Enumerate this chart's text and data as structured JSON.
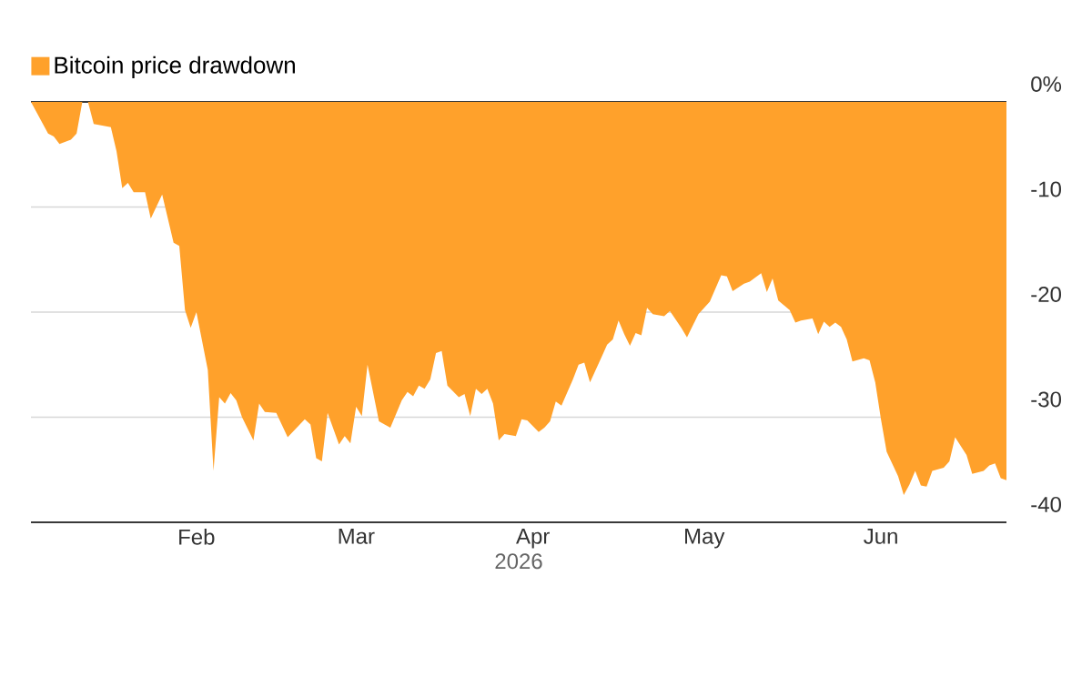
{
  "chart_data": {
    "type": "area",
    "legend": "top left",
    "xlabel": "2026",
    "xlim": [
      "2026-01-03",
      "2026-06-23"
    ],
    "xticks": [
      {
        "value": "2026-02-01",
        "label": "Feb"
      },
      {
        "value": "2026-03-01",
        "label": "Mar"
      },
      {
        "value": "2026-04-01",
        "label": "Apr"
      },
      {
        "value": "2026-05-01",
        "label": "May"
      },
      {
        "value": "2026-06-01",
        "label": "Jun"
      }
    ],
    "ylim": [
      -40,
      0
    ],
    "yticks": [
      {
        "value": 0,
        "label": "0%"
      },
      -10,
      -20,
      -30,
      -40
    ],
    "grid": "y",
    "x": [
      "2026-01-03",
      "2026-01-06",
      "2026-01-07",
      "2026-01-08",
      "2026-01-10",
      "2026-01-11",
      "2026-01-12",
      "2026-01-13",
      "2026-01-14",
      "2026-01-17",
      "2026-01-18",
      "2026-01-19",
      "2026-01-20",
      "2026-01-21",
      "2026-01-23",
      "2026-01-24",
      "2026-01-26",
      "2026-01-28",
      "2026-01-29",
      "2026-01-30",
      "2026-01-31",
      "2026-02-01",
      "2026-02-03",
      "2026-02-04",
      "2026-02-05",
      "2026-02-06",
      "2026-02-07",
      "2026-02-08",
      "2026-02-09",
      "2026-02-11",
      "2026-02-12",
      "2026-02-13",
      "2026-02-15",
      "2026-02-17",
      "2026-02-20",
      "2026-02-21",
      "2026-02-22",
      "2026-02-23",
      "2026-02-24",
      "2026-02-26",
      "2026-02-27",
      "2026-02-28",
      "2026-03-01",
      "2026-03-02",
      "2026-03-03",
      "2026-03-05",
      "2026-03-07",
      "2026-03-09",
      "2026-03-10",
      "2026-03-11",
      "2026-03-12",
      "2026-03-13",
      "2026-03-14",
      "2026-03-15",
      "2026-03-16",
      "2026-03-17",
      "2026-03-19",
      "2026-03-20",
      "2026-03-21",
      "2026-03-22",
      "2026-03-23",
      "2026-03-24",
      "2026-03-25",
      "2026-03-26",
      "2026-03-27",
      "2026-03-29",
      "2026-03-30",
      "2026-03-31",
      "2026-04-02",
      "2026-04-03",
      "2026-04-04",
      "2026-04-05",
      "2026-04-06",
      "2026-04-08",
      "2026-04-09",
      "2026-04-10",
      "2026-04-11",
      "2026-04-13",
      "2026-04-14",
      "2026-04-15",
      "2026-04-16",
      "2026-04-17",
      "2026-04-18",
      "2026-04-19",
      "2026-04-20",
      "2026-04-21",
      "2026-04-22",
      "2026-04-24",
      "2026-04-25",
      "2026-04-27",
      "2026-04-28",
      "2026-04-30",
      "2026-05-02",
      "2026-05-04",
      "2026-05-05",
      "2026-05-06",
      "2026-05-08",
      "2026-05-09",
      "2026-05-11",
      "2026-05-12",
      "2026-05-13",
      "2026-05-14",
      "2026-05-16",
      "2026-05-17",
      "2026-05-18",
      "2026-05-20",
      "2026-05-21",
      "2026-05-22",
      "2026-05-23",
      "2026-05-24",
      "2026-05-25",
      "2026-05-26",
      "2026-05-27",
      "2026-05-29",
      "2026-05-30",
      "2026-05-31",
      "2026-06-01",
      "2026-06-02",
      "2026-06-04",
      "2026-06-05",
      "2026-06-06",
      "2026-06-07",
      "2026-06-08",
      "2026-06-09",
      "2026-06-10",
      "2026-06-12",
      "2026-06-13",
      "2026-06-14",
      "2026-06-16",
      "2026-06-17",
      "2026-06-19",
      "2026-06-20",
      "2026-06-21",
      "2026-06-22",
      "2026-06-23"
    ],
    "series": [
      {
        "name": "Bitcoin price drawdown",
        "color": "#ffa12b",
        "values": [
          0,
          -3.0,
          -3.3,
          -4.0,
          -3.6,
          -3.0,
          0,
          0,
          -2.1,
          -2.4,
          -4.7,
          -8.2,
          -7.7,
          -8.6,
          -8.6,
          -11.1,
          -8.8,
          -13.4,
          -13.7,
          -19.8,
          -21.5,
          -20.0,
          -25.5,
          -35.1,
          -28.1,
          -28.7,
          -27.7,
          -28.4,
          -30.0,
          -32.2,
          -28.7,
          -29.5,
          -29.6,
          -31.9,
          -30.2,
          -30.7,
          -33.9,
          -34.2,
          -29.6,
          -32.6,
          -31.8,
          -32.5,
          -29.0,
          -29.9,
          -25.0,
          -30.4,
          -31.0,
          -28.4,
          -27.6,
          -28.0,
          -27.0,
          -27.3,
          -26.4,
          -23.9,
          -23.7,
          -27.0,
          -28.1,
          -27.8,
          -29.9,
          -27.3,
          -27.8,
          -27.3,
          -28.7,
          -32.2,
          -31.6,
          -31.8,
          -30.2,
          -30.3,
          -31.4,
          -31.0,
          -30.4,
          -28.5,
          -28.9,
          -26.4,
          -25.0,
          -24.8,
          -26.7,
          -24.3,
          -23.1,
          -22.6,
          -20.8,
          -22.1,
          -23.2,
          -22.0,
          -22.2,
          -19.6,
          -20.2,
          -20.4,
          -19.9,
          -21.5,
          -22.4,
          -20.2,
          -19.0,
          -16.5,
          -16.6,
          -18.0,
          -17.3,
          -17.1,
          -16.3,
          -18.1,
          -16.8,
          -18.9,
          -19.8,
          -21.0,
          -20.8,
          -20.6,
          -22.1,
          -20.9,
          -21.4,
          -21.0,
          -21.4,
          -22.6,
          -24.7,
          -24.4,
          -24.6,
          -26.7,
          -30.2,
          -33.3,
          -35.6,
          -37.4,
          -36.4,
          -35.1,
          -36.5,
          -36.6,
          -35.1,
          -34.8,
          -34.2,
          -31.9,
          -33.6,
          -35.4,
          -35.1,
          -34.6,
          -34.4,
          -35.8,
          -36.0
        ]
      }
    ]
  }
}
